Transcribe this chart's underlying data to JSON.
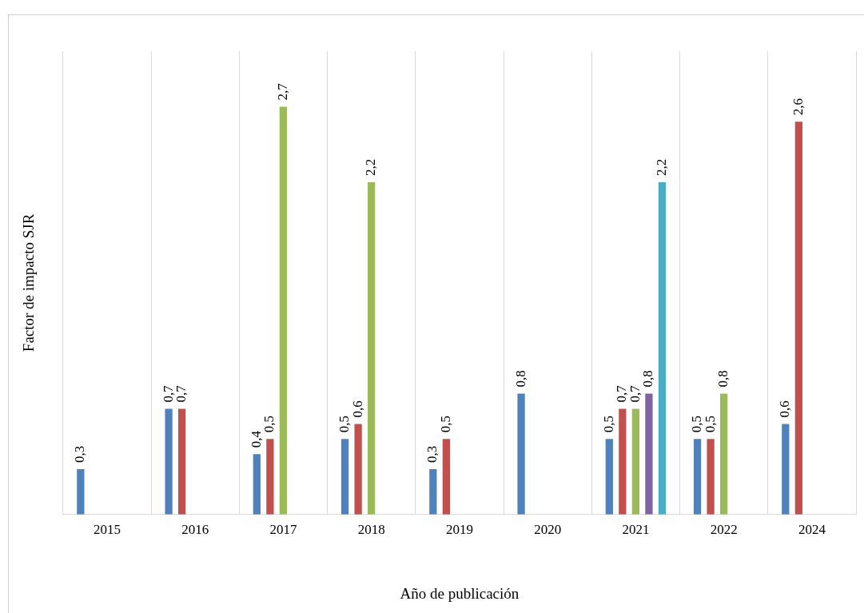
{
  "chart_data": {
    "type": "bar",
    "xlabel": "Año de publicación",
    "ylabel": "Factor de impacto SJR",
    "categories": [
      "2015",
      "2016",
      "2017",
      "2018",
      "2019",
      "2020",
      "2021",
      "2022",
      "2024"
    ],
    "series": [
      {
        "color": "#4f81bd",
        "values": [
          0.3,
          0.7,
          0.4,
          0.5,
          0.3,
          0.8,
          0.5,
          0.5,
          0.6
        ],
        "value_labels": [
          "0,3",
          "0,7",
          "0,4",
          "0,5",
          "0,3",
          "0,8",
          "0,5",
          "0,5",
          "0,6"
        ]
      },
      {
        "color": "#c0504d",
        "values": [
          null,
          0.7,
          0.5,
          0.6,
          0.5,
          null,
          0.7,
          0.5,
          2.6
        ],
        "value_labels": [
          null,
          "0,7",
          "0,5",
          "0,6",
          "0,5",
          null,
          "0,7",
          "0,5",
          "2,6"
        ]
      },
      {
        "color": "#9bbb59",
        "values": [
          null,
          null,
          2.7,
          2.2,
          null,
          null,
          0.7,
          0.8,
          null
        ],
        "value_labels": [
          null,
          null,
          "2,7",
          "2,2",
          null,
          null,
          "0,7",
          "0,8",
          null
        ]
      },
      {
        "color": "#8064a2",
        "values": [
          null,
          null,
          null,
          null,
          null,
          null,
          0.8,
          null,
          null
        ],
        "value_labels": [
          null,
          null,
          null,
          null,
          null,
          null,
          "0,8",
          null,
          null
        ]
      },
      {
        "color": "#4bacc6",
        "values": [
          null,
          null,
          null,
          null,
          null,
          null,
          2.2,
          null,
          null
        ],
        "value_labels": [
          null,
          null,
          null,
          null,
          null,
          null,
          "2,2",
          null,
          null
        ]
      }
    ],
    "grid": "x",
    "tick_labels": "x"
  }
}
